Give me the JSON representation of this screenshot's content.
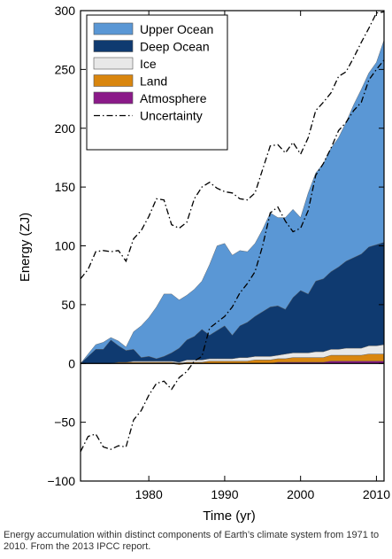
{
  "chart_data": {
    "type": "area",
    "xlabel": "Time (yr)",
    "ylabel": "Energy (ZJ)",
    "xlim": [
      1971,
      2011
    ],
    "ylim": [
      -100,
      300
    ],
    "x_ticks": [
      1980,
      1990,
      2000,
      2010
    ],
    "y_ticks": [
      -100,
      -50,
      0,
      50,
      100,
      150,
      200,
      250,
      300
    ],
    "grid": false,
    "legend_position": "top-left",
    "x": [
      1971,
      1972,
      1973,
      1974,
      1975,
      1976,
      1977,
      1978,
      1979,
      1980,
      1981,
      1982,
      1983,
      1984,
      1985,
      1986,
      1987,
      1988,
      1989,
      1990,
      1991,
      1992,
      1993,
      1994,
      1995,
      1996,
      1997,
      1998,
      1999,
      2000,
      2001,
      2002,
      2003,
      2004,
      2005,
      2006,
      2007,
      2008,
      2009,
      2010,
      2011
    ],
    "series": [
      {
        "name": "Atmosphere",
        "color": "#8b1a89",
        "values": [
          0,
          0,
          0,
          0,
          0,
          0,
          0,
          0,
          0,
          0,
          0,
          0,
          0,
          -1,
          0,
          0,
          0,
          0,
          0,
          0,
          0,
          0,
          0,
          0,
          0,
          0,
          1,
          1,
          1,
          1,
          1,
          1,
          1,
          2,
          2,
          2,
          2,
          2,
          2,
          2,
          2
        ]
      },
      {
        "name": "Land",
        "color": "#d9860f",
        "values": [
          0,
          0,
          0,
          0,
          0,
          1,
          1,
          1,
          1,
          1,
          1,
          1,
          1,
          1,
          1,
          1,
          1,
          2,
          2,
          2,
          2,
          2,
          2,
          3,
          3,
          3,
          3,
          3,
          4,
          4,
          4,
          4,
          4,
          5,
          5,
          5,
          5,
          5,
          6,
          6,
          6
        ]
      },
      {
        "name": "Ice",
        "color": "#e8e8e8",
        "values": [
          0,
          0,
          0,
          0,
          0,
          0,
          0,
          1,
          1,
          1,
          1,
          1,
          1,
          1,
          2,
          2,
          2,
          2,
          2,
          2,
          2,
          3,
          3,
          3,
          3,
          3,
          3,
          4,
          4,
          4,
          4,
          5,
          5,
          5,
          5,
          6,
          6,
          6,
          7,
          7,
          8
        ]
      },
      {
        "name": "Deep Ocean",
        "color": "#0f3a70",
        "values": [
          0,
          6,
          12,
          12,
          20,
          14,
          10,
          10,
          3,
          4,
          2,
          4,
          7,
          12,
          17,
          20,
          26,
          20,
          24,
          28,
          20,
          27,
          30,
          34,
          38,
          42,
          42,
          38,
          47,
          53,
          50,
          60,
          62,
          66,
          70,
          74,
          77,
          80,
          84,
          86,
          87
        ]
      },
      {
        "name": "Upper Ocean",
        "color": "#5a97d5",
        "values": [
          0,
          2,
          4,
          6,
          2,
          4,
          3,
          15,
          27,
          33,
          44,
          53,
          50,
          41,
          38,
          40,
          41,
          60,
          72,
          70,
          68,
          64,
          60,
          62,
          70,
          80,
          75,
          78,
          75,
          62,
          86,
          92,
          98,
          105,
          110,
          118,
          130,
          140,
          148,
          155,
          172
        ]
      }
    ],
    "uncertainty": {
      "name": "Uncertainty",
      "upper": [
        72,
        80,
        95,
        96,
        95,
        96,
        87,
        106,
        113,
        125,
        140,
        139,
        118,
        115,
        120,
        140,
        150,
        154,
        149,
        146,
        145,
        140,
        139,
        145,
        165,
        185,
        186,
        179,
        188,
        178,
        192,
        215,
        222,
        230,
        244,
        248,
        260,
        273,
        285,
        298,
        299
      ],
      "lower": [
        -75,
        -62,
        -60,
        -71,
        -73,
        -70,
        -71,
        -48,
        -40,
        -27,
        -17,
        -15,
        -22,
        -12,
        -7,
        2,
        6,
        30,
        35,
        40,
        48,
        60,
        68,
        78,
        100,
        128,
        133,
        121,
        112,
        115,
        130,
        160,
        170,
        183,
        198,
        205,
        215,
        222,
        241,
        250,
        258
      ]
    }
  },
  "caption": "Energy accumulation within distinct components of Earth’s climate system from 1971 to 2010. From the 2013 IPCC report."
}
